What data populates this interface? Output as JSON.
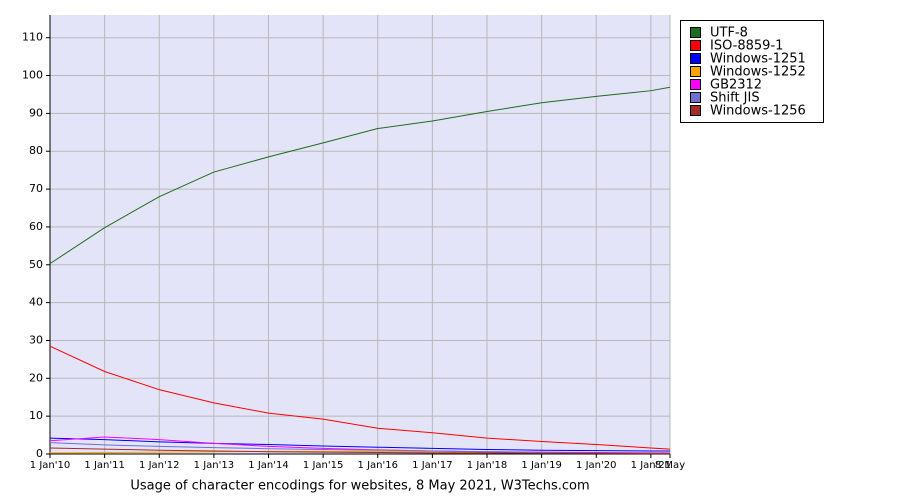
{
  "chart_data": {
    "type": "line",
    "title": "Usage of character encodings for websites, 8 May 2021, W3Techs.com",
    "x": [
      2010,
      2011,
      2012,
      2013,
      2014,
      2015,
      2016,
      2017,
      2018,
      2019,
      2020,
      2021,
      2021.35
    ],
    "xlim": [
      2010,
      2021.35
    ],
    "xticks": [
      {
        "value": 2010,
        "label": "1 Jan'10"
      },
      {
        "value": 2011,
        "label": "1 Jan'11"
      },
      {
        "value": 2012,
        "label": "1 Jan'12"
      },
      {
        "value": 2013,
        "label": "1 Jan'13"
      },
      {
        "value": 2014,
        "label": "1 Jan'14"
      },
      {
        "value": 2015,
        "label": "1 Jan'15"
      },
      {
        "value": 2016,
        "label": "1 Jan'16"
      },
      {
        "value": 2017,
        "label": "1 Jan'17"
      },
      {
        "value": 2018,
        "label": "1 Jan'18"
      },
      {
        "value": 2019,
        "label": "1 Jan'19"
      },
      {
        "value": 2020,
        "label": "1 Jan'20"
      },
      {
        "value": 2021,
        "label": "1 Jan'21"
      },
      {
        "value": 2021.35,
        "label": "8 May"
      }
    ],
    "ylim": [
      0,
      116
    ],
    "yticks": [
      0,
      10,
      20,
      30,
      40,
      50,
      60,
      70,
      80,
      90,
      100,
      110
    ],
    "grid": true,
    "legend": "right",
    "series": [
      {
        "name": "UTF-8",
        "color": "#1f6b1f",
        "values": [
          50.3,
          59.8,
          68,
          74.5,
          78.5,
          82.2,
          86,
          88,
          90.5,
          92.8,
          94.5,
          96,
          96.9
        ]
      },
      {
        "name": "ISO-8859-1",
        "color": "#ff0000",
        "values": [
          28.5,
          21.8,
          17,
          13.5,
          10.8,
          9.2,
          6.8,
          5.6,
          4.2,
          3.3,
          2.5,
          1.6,
          1.3
        ]
      },
      {
        "name": "Windows-1251",
        "color": "#0000ff",
        "values": [
          4.2,
          3.8,
          3.2,
          2.8,
          2.5,
          2.1,
          1.8,
          1.5,
          1.2,
          1.0,
          0.9,
          0.8,
          0.8
        ]
      },
      {
        "name": "Windows-1252",
        "color": "#ffa500",
        "values": [
          0.3,
          0.4,
          0.5,
          0.6,
          0.7,
          0.7,
          0.7,
          0.6,
          0.5,
          0.4,
          0.3,
          0.3,
          0.3
        ]
      },
      {
        "name": "GB2312",
        "color": "#ff00ff",
        "values": [
          3.5,
          4.5,
          3.8,
          2.8,
          2.0,
          1.5,
          1.1,
          0.8,
          0.6,
          0.5,
          0.4,
          0.3,
          0.3
        ]
      },
      {
        "name": "Shift JIS",
        "color": "#7070d0",
        "values": [
          3.0,
          2.4,
          2.0,
          1.7,
          1.4,
          1.2,
          1.0,
          0.8,
          0.6,
          0.4,
          0.3,
          0.2,
          0.2
        ]
      },
      {
        "name": "Windows-1256",
        "color": "#a52a2a",
        "values": [
          1.6,
          1.3,
          1.0,
          0.8,
          0.6,
          0.5,
          0.4,
          0.3,
          0.3,
          0.2,
          0.2,
          0.1,
          0.1
        ]
      }
    ]
  }
}
